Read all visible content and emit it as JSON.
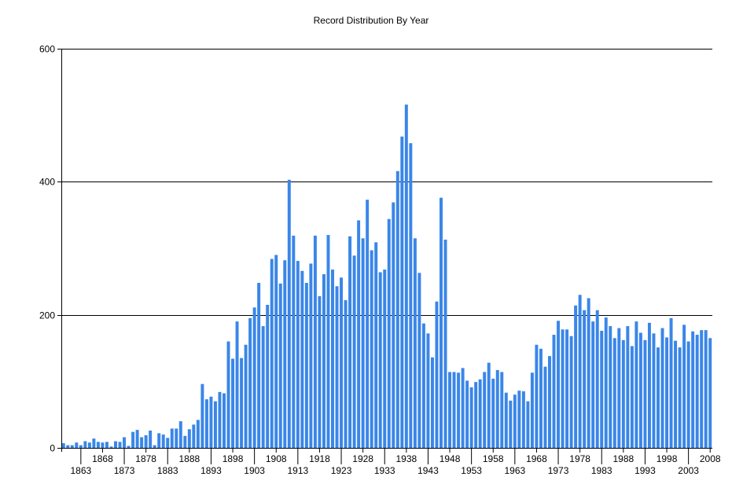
{
  "chart_data": {
    "type": "bar",
    "title": "Record Distribution By Year",
    "xlabel": "",
    "ylabel": "",
    "ylim": [
      0,
      600
    ],
    "yticks": [
      0,
      200,
      400,
      600
    ],
    "grid": "horizontal",
    "legend": "none",
    "bar_color": "#3a86e8",
    "x_start": 1859,
    "x_end": 2008,
    "xtick_upper": [
      1868,
      1878,
      1888,
      1898,
      1908,
      1918,
      1928,
      1938,
      1948,
      1958,
      1968,
      1978,
      1988,
      1998,
      2008
    ],
    "xtick_lower": [
      1863,
      1873,
      1883,
      1893,
      1903,
      1913,
      1923,
      1933,
      1943,
      1953,
      1963,
      1973,
      1983,
      1993,
      2003
    ],
    "values": [
      7,
      4,
      4,
      8,
      4,
      10,
      8,
      14,
      9,
      8,
      9,
      2,
      10,
      9,
      16,
      3,
      24,
      27,
      16,
      19,
      26,
      4,
      22,
      20,
      15,
      29,
      29,
      40,
      18,
      28,
      35,
      42,
      96,
      73,
      77,
      70,
      84,
      82,
      160,
      134,
      190,
      135,
      155,
      195,
      211,
      248,
      183,
      215,
      284,
      290,
      247,
      282,
      403,
      319,
      281,
      266,
      248,
      277,
      319,
      228,
      261,
      320,
      268,
      243,
      256,
      222,
      318,
      289,
      342,
      315,
      373,
      297,
      309,
      264,
      268,
      344,
      369,
      416,
      468,
      516,
      458,
      315,
      263,
      187,
      172,
      136,
      220,
      376,
      313,
      114,
      114,
      113,
      120,
      101,
      91,
      99,
      103,
      114,
      128,
      104,
      117,
      114,
      83,
      71,
      80,
      86,
      85,
      70,
      113,
      155,
      149,
      122,
      138,
      170,
      191,
      178,
      178,
      168,
      214,
      230,
      207,
      225,
      190,
      207,
      176,
      196,
      183,
      165,
      180,
      162,
      183,
      153,
      190,
      173,
      162,
      188,
      172,
      151,
      180,
      166,
      195,
      161,
      151,
      185,
      160,
      175,
      170,
      177,
      177,
      165
    ]
  }
}
